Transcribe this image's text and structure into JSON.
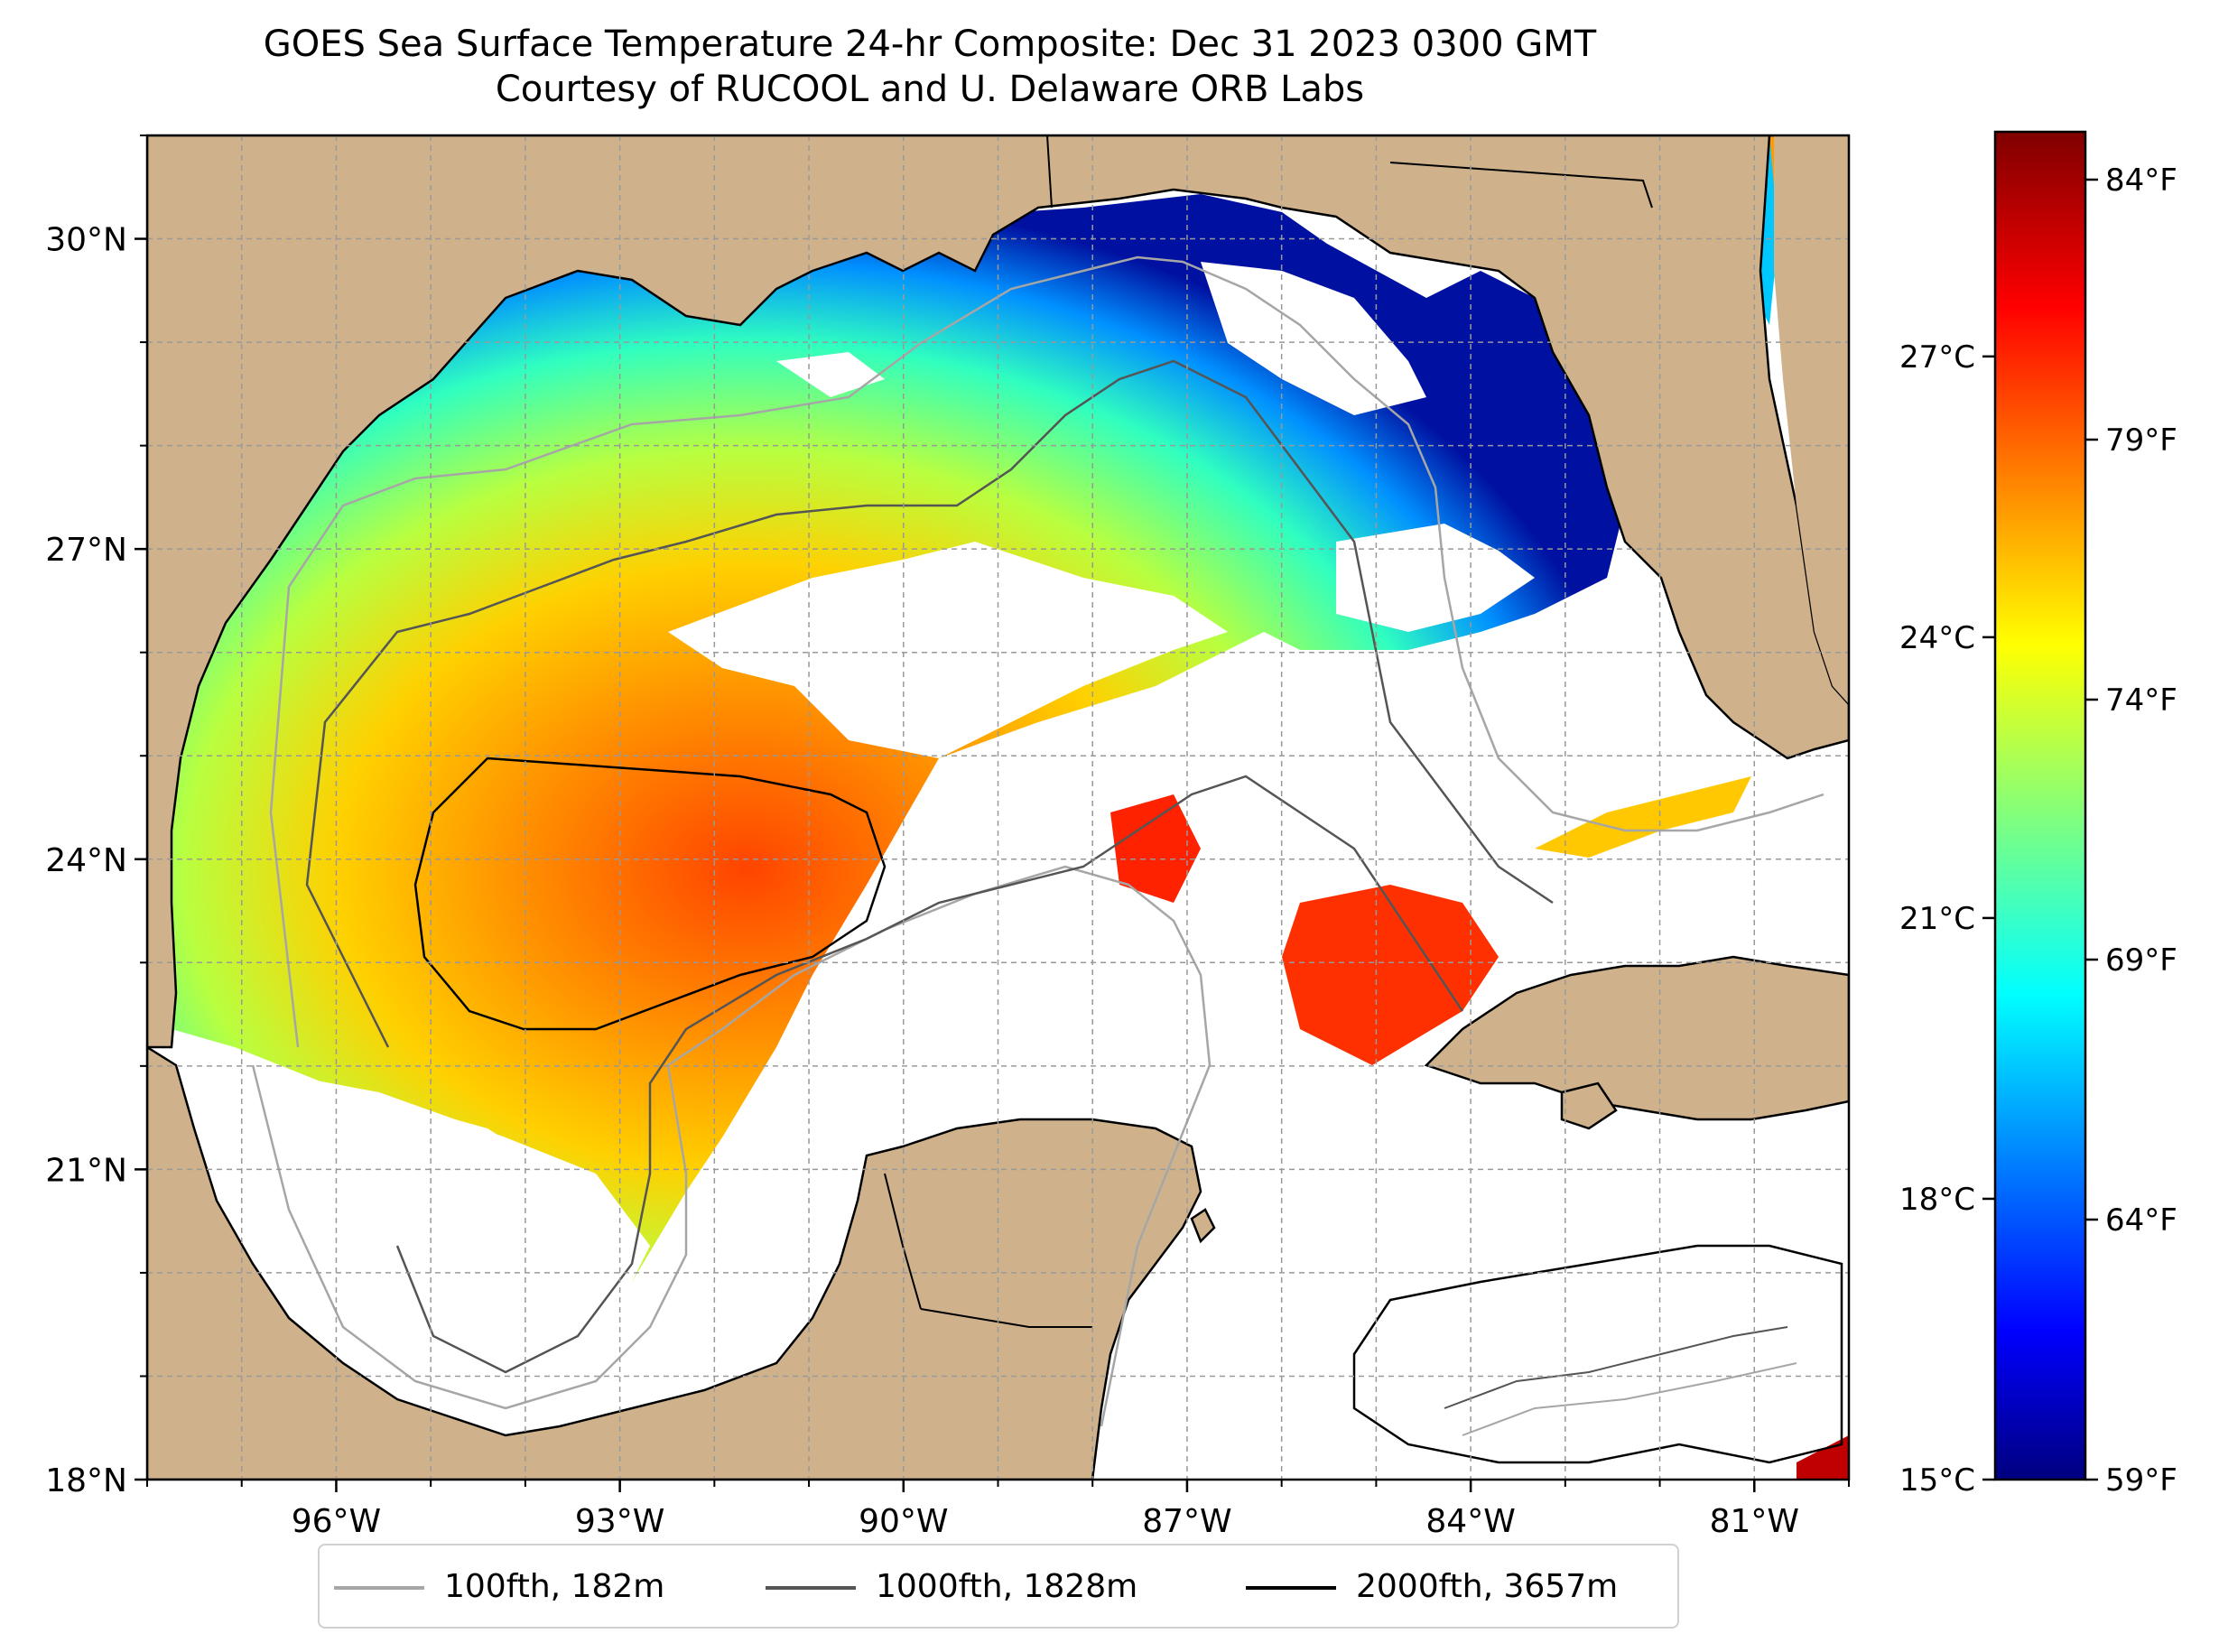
{
  "title": {
    "line1": "GOES Sea Surface Temperature 24-hr Composite: Dec 31 2023 0300 GMT",
    "line2": "Courtesy of RUCOOL and U. Delaware ORB Labs"
  },
  "map": {
    "lon_range": [
      -98,
      -80
    ],
    "lat_range": [
      18,
      31
    ],
    "lon_ticks": [
      {
        "value": -96,
        "label": "96°W"
      },
      {
        "value": -93,
        "label": "93°W"
      },
      {
        "value": -90,
        "label": "90°W"
      },
      {
        "value": -87,
        "label": "87°W"
      },
      {
        "value": -84,
        "label": "84°W"
      },
      {
        "value": -81,
        "label": "81°W"
      }
    ],
    "lat_ticks": [
      {
        "value": 18,
        "label": "18°N"
      },
      {
        "value": 21,
        "label": "21°N"
      },
      {
        "value": 24,
        "label": "24°N"
      },
      {
        "value": 27,
        "label": "27°N"
      },
      {
        "value": 30,
        "label": "30°N"
      }
    ],
    "grid": true,
    "land_color": "#cfb28b",
    "water_color": "#ffffff"
  },
  "legend": {
    "items": [
      {
        "label": "100fth, 182m",
        "color": "#a6a6a6"
      },
      {
        "label": "1000fth, 1828m",
        "color": "#555555"
      },
      {
        "label": "2000fth, 3657m",
        "color": "#000000"
      }
    ]
  },
  "colorbar": {
    "min_c": 15,
    "max_c": 29.4,
    "colormap": "jet",
    "celsius_ticks": [
      {
        "value": 15,
        "label": "15°C"
      },
      {
        "value": 18,
        "label": "18°C"
      },
      {
        "value": 21,
        "label": "21°C"
      },
      {
        "value": 24,
        "label": "24°C"
      },
      {
        "value": 27,
        "label": "27°C"
      }
    ],
    "fahrenheit_ticks": [
      {
        "value": 59,
        "label": "59°F"
      },
      {
        "value": 64,
        "label": "64°F"
      },
      {
        "value": 69,
        "label": "69°F"
      },
      {
        "value": 74,
        "label": "74°F"
      },
      {
        "value": 79,
        "label": "79°F"
      },
      {
        "value": 84,
        "label": "84°F"
      }
    ]
  }
}
